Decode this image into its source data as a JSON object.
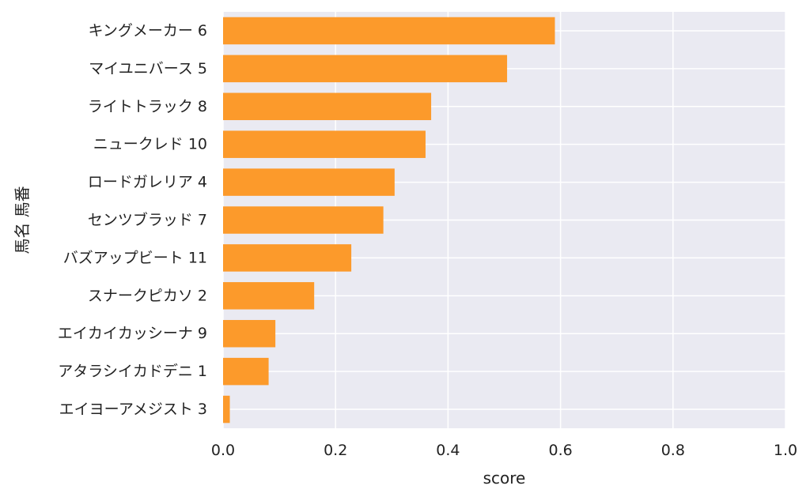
{
  "chart_data": {
    "type": "bar",
    "orientation": "horizontal",
    "title": "",
    "xlabel": "score",
    "ylabel": "馬名 馬番",
    "xlim": [
      0.0,
      1.0
    ],
    "xticks": [
      "0.0",
      "0.2",
      "0.4",
      "0.6",
      "0.8",
      "1.0"
    ],
    "xtick_values": [
      0,
      0.2,
      0.4,
      0.6,
      0.8,
      1.0
    ],
    "grid": true,
    "bar_color": "#fc9a2b",
    "background_color": "#eaeaf2",
    "grid_color": "#ffffff",
    "categories": [
      "キングメーカー 6",
      "マイユニバース 5",
      "ライトトラック 8",
      "ニュークレド 10",
      "ロードガレリア 4",
      "センツブラッド 7",
      "バズアップビート 11",
      "スナークピカソ 2",
      "エイカイカッシーナ 9",
      "アタラシイカドデニ 1",
      "エイヨーアメジスト 3"
    ],
    "values": [
      0.59,
      0.505,
      0.37,
      0.36,
      0.305,
      0.285,
      0.228,
      0.162,
      0.093,
      0.081,
      0.012
    ]
  }
}
